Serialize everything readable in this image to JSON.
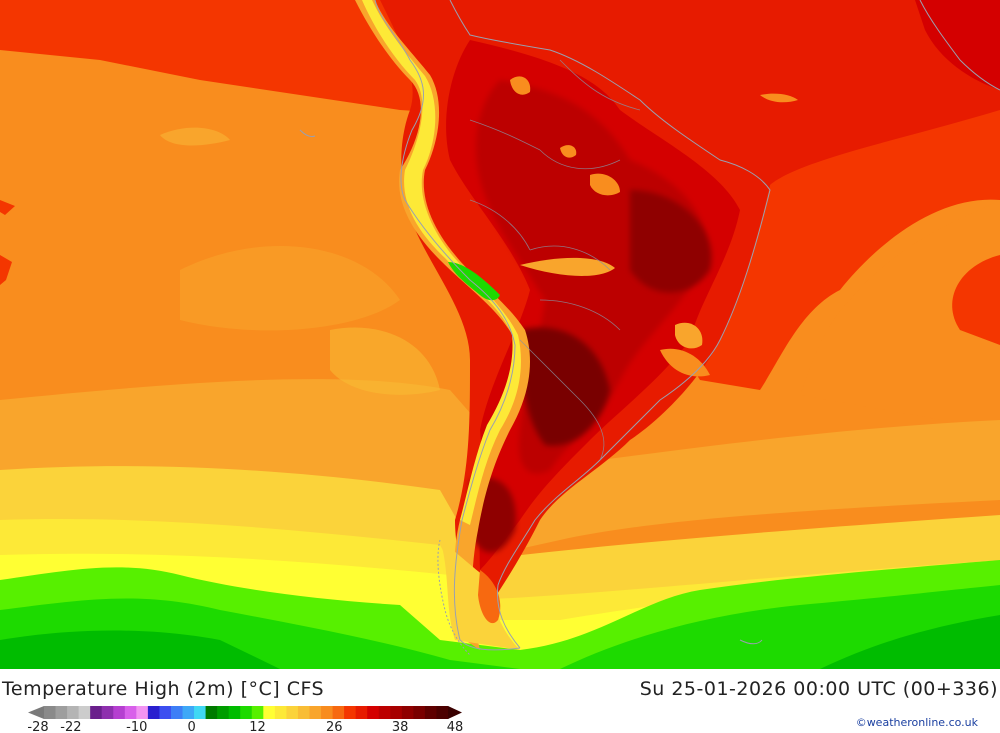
{
  "title_left": "Temperature High (2m) [°C] CFS",
  "title_right": "Su 25-01-2026 00:00 UTC (00+336)",
  "credit": "©weatheronline.co.uk",
  "legend": {
    "tick_labels": [
      "-28",
      "-22",
      "-10",
      "0",
      "12",
      "26",
      "38",
      "48"
    ],
    "tick_values": [
      -28,
      -22,
      -10,
      0,
      12,
      26,
      38,
      48
    ],
    "colors": [
      "#8a8a8a",
      "#9e9e9e",
      "#b4b4b4",
      "#cccccc",
      "#6a1f8c",
      "#8e2fae",
      "#b53fd0",
      "#d860ea",
      "#f294f2",
      "#2a1fcf",
      "#3c4ef0",
      "#3d7ef6",
      "#3ea8f7",
      "#40d8f4",
      "#007a00",
      "#009d00",
      "#00bc00",
      "#1dda00",
      "#57f000",
      "#ffff33",
      "#fde937",
      "#fbd33a",
      "#f9bd35",
      "#f9a52c",
      "#f88c1e",
      "#f76910",
      "#f43600",
      "#e71b00",
      "#d40000",
      "#bc0000",
      "#a70000",
      "#8f0000",
      "#790000",
      "#5f0000",
      "#4c0000"
    ],
    "value_min": -28,
    "value_max": 48
  }
}
